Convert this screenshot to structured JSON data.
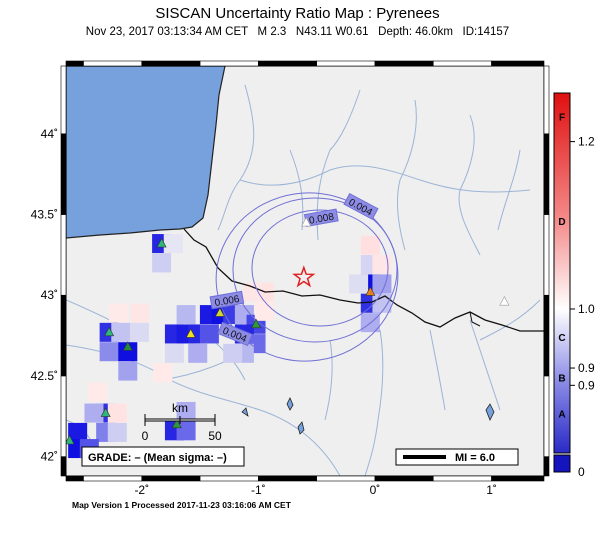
{
  "title": "SISCAN Uncertainty Ratio Map : Pyrenees",
  "subtitle": "Nov 23, 2017 03:13:34 AM CET   M 2.3   N43.11 W0.61   Depth: 46.0km   ID:14157",
  "footer": "Map Version 1 Processed 2017-11-23 03:16:06 AM CET",
  "map": {
    "lon_range": [
      -2.65,
      1.45
    ],
    "lat_range": [
      41.88,
      44.42
    ],
    "x_ticks": [
      {
        "value": -2,
        "label": "-2˚"
      },
      {
        "value": -1,
        "label": "-1˚"
      },
      {
        "value": 0,
        "label": "0˚"
      },
      {
        "value": 1,
        "label": "1˚"
      }
    ],
    "y_ticks": [
      {
        "value": 44,
        "label": "44˚"
      },
      {
        "value": 43.5,
        "label": "43.5˚"
      },
      {
        "value": 43,
        "label": "43˚"
      },
      {
        "value": 42.5,
        "label": "42.5˚"
      },
      {
        "value": 42,
        "label": "42˚"
      }
    ],
    "colors": {
      "land": "#efefef",
      "sea": "#76a1dc",
      "river": "#9bb4d6",
      "contour": "#6f6fd6",
      "epicenter": "#e02020"
    },
    "epicenter": {
      "lon": -0.61,
      "lat": 43.11
    },
    "contours": [
      {
        "label": "0.004",
        "lon": -0.12,
        "lat": 43.55
      },
      {
        "label": "0.008",
        "lon": -0.46,
        "lat": 43.48
      },
      {
        "label": "0.006",
        "lon": -1.27,
        "lat": 42.97
      },
      {
        "label": "0.004",
        "lon": -1.2,
        "lat": 42.76
      }
    ],
    "scale_bar": {
      "label": "km",
      "ticks": [
        "0",
        "50"
      ]
    },
    "grade": "GRADE: – (Mean sigma: –)",
    "mi_legend": "MI = 6.0",
    "stations": [
      {
        "lon": -1.83,
        "lat": 43.32,
        "color": "#2db87a"
      },
      {
        "lon": -2.28,
        "lat": 42.77,
        "color": "#2db87a"
      },
      {
        "lon": -2.12,
        "lat": 42.68,
        "color": "#1f8a3a"
      },
      {
        "lon": -1.58,
        "lat": 42.76,
        "color": "#f0e020"
      },
      {
        "lon": -1.33,
        "lat": 42.89,
        "color": "#d4d430"
      },
      {
        "lon": -1.02,
        "lat": 42.82,
        "color": "#2c9a3a"
      },
      {
        "lon": -2.31,
        "lat": 42.27,
        "color": "#2db87a"
      },
      {
        "lon": -2.62,
        "lat": 42.1,
        "color": "#2db87a"
      },
      {
        "lon": -1.7,
        "lat": 42.2,
        "color": "#2c9a3a"
      },
      {
        "lon": -0.04,
        "lat": 43.02,
        "color": "#e8801a"
      },
      {
        "lon": 1.11,
        "lat": 42.96,
        "color": "#ffffff"
      },
      {
        "lon": -0.59,
        "lat": 43.45,
        "color": "#ffffff"
      }
    ],
    "cells": [
      {
        "lon": -1.83,
        "lat": 43.32,
        "v": 0.9
      },
      {
        "lon": -1.83,
        "lat": 43.2,
        "v": 0.15
      },
      {
        "lon": -1.73,
        "lat": 43.32,
        "v": 0.05
      },
      {
        "lon": -2.28,
        "lat": 42.77,
        "v": 0.85
      },
      {
        "lon": -2.18,
        "lat": 42.77,
        "v": 0.2
      },
      {
        "lon": -2.28,
        "lat": 42.65,
        "v": 0.45
      },
      {
        "lon": -2.12,
        "lat": 42.65,
        "v": 1.0
      },
      {
        "lon": -2.12,
        "lat": 42.53,
        "v": 0.35
      },
      {
        "lon": -2.02,
        "lat": 42.77,
        "v": 0.1
      },
      {
        "lon": -1.62,
        "lat": 42.88,
        "v": 0.25
      },
      {
        "lon": -1.72,
        "lat": 42.76,
        "v": 0.9
      },
      {
        "lon": -1.62,
        "lat": 42.76,
        "v": 0.95
      },
      {
        "lon": -1.52,
        "lat": 42.76,
        "v": 0.9
      },
      {
        "lon": -1.42,
        "lat": 42.76,
        "v": 0.7
      },
      {
        "lon": -1.42,
        "lat": 42.88,
        "v": 0.95
      },
      {
        "lon": -1.32,
        "lat": 42.88,
        "v": 1.0
      },
      {
        "lon": -1.22,
        "lat": 42.88,
        "v": 0.8
      },
      {
        "lon": -1.12,
        "lat": 42.88,
        "v": 0.3
      },
      {
        "lon": -1.02,
        "lat": 42.82,
        "v": 0.75
      },
      {
        "lon": -1.12,
        "lat": 42.76,
        "v": 0.9
      },
      {
        "lon": -1.02,
        "lat": 42.7,
        "v": 0.6
      },
      {
        "lon": -1.12,
        "lat": 42.64,
        "v": 0.25
      },
      {
        "lon": -1.52,
        "lat": 42.64,
        "v": 0.3
      },
      {
        "lon": -1.72,
        "lat": 42.64,
        "v": 0.1
      },
      {
        "lon": -2.31,
        "lat": 42.27,
        "v": 0.85
      },
      {
        "lon": -2.41,
        "lat": 42.27,
        "v": 0.3
      },
      {
        "lon": -2.31,
        "lat": 42.15,
        "v": 0.5
      },
      {
        "lon": -2.21,
        "lat": 42.15,
        "v": 0.15
      },
      {
        "lon": -2.55,
        "lat": 42.15,
        "v": 0.95
      },
      {
        "lon": -2.55,
        "lat": 42.05,
        "v": 1.0
      },
      {
        "lon": -2.45,
        "lat": 42.05,
        "v": 0.7
      },
      {
        "lon": -1.72,
        "lat": 42.16,
        "v": 0.9
      },
      {
        "lon": -1.62,
        "lat": 42.16,
        "v": 0.6
      },
      {
        "lon": -1.62,
        "lat": 42.28,
        "v": 0.3
      },
      {
        "lon": -0.04,
        "lat": 43.07,
        "v": 1.0
      },
      {
        "lon": -0.04,
        "lat": 42.95,
        "v": 0.85
      },
      {
        "lon": 0.06,
        "lat": 43.07,
        "v": 0.35
      },
      {
        "lon": -0.04,
        "lat": 42.83,
        "v": 0.3
      },
      {
        "lon": 0.06,
        "lat": 42.95,
        "v": 0.2
      },
      {
        "lon": -0.04,
        "lat": 43.19,
        "v": 0.12
      },
      {
        "lon": -0.14,
        "lat": 43.07,
        "v": 0.08
      },
      {
        "lon": -0.95,
        "lat": 43.02,
        "v": -0.2
      },
      {
        "lon": -1.05,
        "lat": 43.02,
        "v": -0.15
      },
      {
        "lon": -0.95,
        "lat": 42.9,
        "v": -0.1
      },
      {
        "lon": -0.04,
        "lat": 43.31,
        "v": -0.25
      },
      {
        "lon": 0.06,
        "lat": 43.19,
        "v": -0.15
      },
      {
        "lon": -2.21,
        "lat": 42.27,
        "v": -0.2
      },
      {
        "lon": -2.38,
        "lat": 42.4,
        "v": -0.1
      },
      {
        "lon": -2.02,
        "lat": 42.89,
        "v": -0.15
      },
      {
        "lon": -2.2,
        "lat": 42.89,
        "v": -0.08
      },
      {
        "lon": -1.82,
        "lat": 42.52,
        "v": -0.1
      },
      {
        "lon": -1.22,
        "lat": 42.64,
        "v": 0.15
      }
    ]
  },
  "colorbar": {
    "ticks_right": [
      {
        "label": "1.2",
        "frac": 0.865
      },
      {
        "label": "1.0",
        "frac": 0.4
      },
      {
        "label": "0.9",
        "frac": 0.236
      },
      {
        "label": "0.9",
        "frac": 0.188
      },
      {
        "label": "0",
        "frac": -0.02
      }
    ],
    "ticks_left": [
      {
        "label": "F",
        "frac": 0.935
      },
      {
        "label": "D",
        "frac": 0.645
      },
      {
        "label": "C",
        "frac": 0.322
      },
      {
        "label": "B",
        "frac": 0.21
      },
      {
        "label": "A",
        "frac": 0.11
      }
    ]
  }
}
